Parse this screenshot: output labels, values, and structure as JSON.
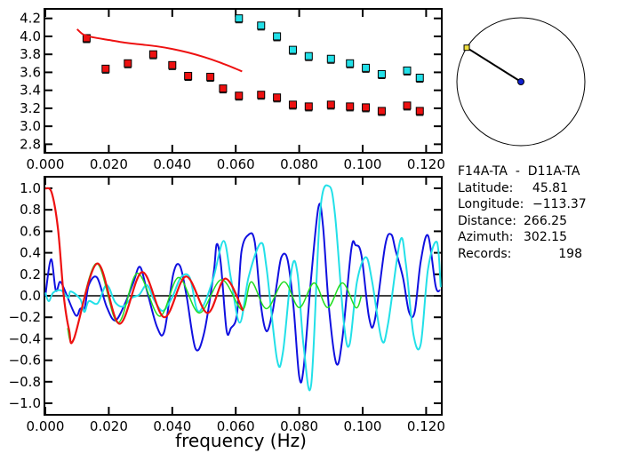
{
  "info": {
    "station_pair": "F14A-TA  -  D11A-TA",
    "rows": [
      {
        "label": "Latitude:",
        "value": "45.81"
      },
      {
        "label": "Longitude:",
        "value": "-113.37"
      },
      {
        "label": "Distance:",
        "value": "266.25"
      },
      {
        "label": "Azimuth:",
        "value": "302.15"
      },
      {
        "label": "Records:",
        "value": "198"
      }
    ]
  },
  "azimuth_dial": {
    "azimuth_deg": 302.15,
    "marker_color": "#f0e040",
    "center_color": "#1020d0"
  },
  "chart_data": [
    {
      "type": "scatter",
      "title": "",
      "xlabel": "",
      "ylabel": "",
      "xlim": [
        0.0,
        0.125
      ],
      "ylim": [
        2.7,
        4.3
      ],
      "xticks": [
        "0.000",
        "0.020",
        "0.040",
        "0.060",
        "0.080",
        "0.100",
        "0.120"
      ],
      "yticks": [
        "2.8",
        "3.0",
        "3.2",
        "3.4",
        "3.6",
        "3.8",
        "4.0",
        "4.2"
      ],
      "grid": false,
      "series": [
        {
          "kind": "points",
          "color": "#ee1111",
          "x": [
            0.013,
            0.019,
            0.026,
            0.034,
            0.04,
            0.045,
            0.052,
            0.056,
            0.061,
            0.068,
            0.073,
            0.078,
            0.083,
            0.09,
            0.096,
            0.101,
            0.106,
            0.114,
            0.118
          ],
          "y": [
            3.98,
            3.64,
            3.7,
            3.8,
            3.68,
            3.56,
            3.55,
            3.42,
            3.34,
            3.35,
            3.32,
            3.24,
            3.22,
            3.24,
            3.22,
            3.21,
            3.17,
            3.23,
            3.17
          ]
        },
        {
          "kind": "points",
          "color": "#22e0e8",
          "x": [
            0.061,
            0.068,
            0.073,
            0.078,
            0.083,
            0.09,
            0.096,
            0.101,
            0.106,
            0.114,
            0.118
          ],
          "y": [
            4.2,
            4.12,
            4.0,
            3.85,
            3.78,
            3.75,
            3.7,
            3.65,
            3.58,
            3.62,
            3.54
          ]
        },
        {
          "kind": "line",
          "color": "#ee1111",
          "x": [
            0.01,
            0.012,
            0.015,
            0.02,
            0.025,
            0.03,
            0.035,
            0.04,
            0.045,
            0.05,
            0.055,
            0.06,
            0.062
          ],
          "y": [
            4.08,
            4.02,
            3.99,
            3.96,
            3.93,
            3.91,
            3.89,
            3.86,
            3.82,
            3.77,
            3.71,
            3.64,
            3.61
          ]
        }
      ]
    },
    {
      "type": "line",
      "title": "",
      "xlabel": "frequency (Hz)",
      "ylabel": "",
      "xlim": [
        0.0,
        0.125
      ],
      "ylim": [
        -1.1,
        1.1
      ],
      "xticks": [
        "0.000",
        "0.020",
        "0.040",
        "0.060",
        "0.080",
        "0.100",
        "0.120"
      ],
      "yticks": [
        "1.0",
        "0.8",
        "0.6",
        "0.4",
        "0.2",
        "0.0",
        "-0.2",
        "-0.4",
        "-0.6",
        "-0.8",
        "-1.0"
      ],
      "grid": false,
      "zero_line": true,
      "series": [
        {
          "color": "#1010e0",
          "width": 2,
          "x": [
            0,
            0.0018,
            0.0033,
            0.0046,
            0.006,
            0.0095,
            0.011,
            0.0124,
            0.0137,
            0.0163,
            0.0193,
            0.022,
            0.025,
            0.0277,
            0.0298,
            0.032,
            0.0352,
            0.0375,
            0.0403,
            0.0424,
            0.0445,
            0.0473,
            0.05,
            0.053,
            0.054,
            0.0553,
            0.0571,
            0.0585,
            0.0604,
            0.0618,
            0.0641,
            0.066,
            0.0679,
            0.0697,
            0.0716,
            0.073,
            0.0744,
            0.0763,
            0.0782,
            0.08,
            0.0814,
            0.0838,
            0.0861,
            0.0875,
            0.0894,
            0.0917,
            0.0936,
            0.0964,
            0.0978,
            0.0996,
            0.102,
            0.1038,
            0.1071,
            0.109,
            0.1104,
            0.1127,
            0.1146,
            0.1164,
            0.1183,
            0.1206,
            0.123,
            0.1244
          ],
          "y": [
            0,
            0.34,
            0.05,
            0.13,
            0.06,
            -0.18,
            -0.12,
            -0.11,
            0.1,
            0.17,
            -0.1,
            -0.23,
            -0.08,
            0.12,
            0.27,
            0.05,
            -0.29,
            -0.33,
            0.2,
            0.28,
            0.0,
            -0.49,
            -0.35,
            0.2,
            0.48,
            0.3,
            -0.32,
            -0.3,
            -0.17,
            0.41,
            0.57,
            0.5,
            -0.08,
            -0.33,
            -0.15,
            0.12,
            0.36,
            0.34,
            -0.1,
            -0.75,
            -0.67,
            0.18,
            0.83,
            0.65,
            -0.12,
            -0.63,
            -0.4,
            0.43,
            0.47,
            0.38,
            -0.2,
            -0.23,
            0.47,
            0.57,
            0.42,
            0.17,
            -0.15,
            -0.15,
            0.32,
            0.56,
            0.09,
            0.05
          ]
        },
        {
          "color": "#22e0e8",
          "width": 2,
          "x": [
            0,
            0.0011,
            0.0025,
            0.005,
            0.0072,
            0.008,
            0.011,
            0.0123,
            0.0137,
            0.0165,
            0.0193,
            0.022,
            0.0245,
            0.0272,
            0.0296,
            0.032,
            0.0343,
            0.037,
            0.0399,
            0.0427,
            0.0455,
            0.0478,
            0.05,
            0.053,
            0.0562,
            0.0585,
            0.0613,
            0.0641,
            0.0679,
            0.0697,
            0.073,
            0.0749,
            0.0777,
            0.0795,
            0.0814,
            0.0838,
            0.0866,
            0.0894,
            0.0913,
            0.0941,
            0.0959,
            0.0982,
            0.101,
            0.103,
            0.106,
            0.108,
            0.1118,
            0.1136,
            0.116,
            0.1183,
            0.1206,
            0.1234,
            0.1246
          ],
          "y": [
            0.03,
            -0.05,
            0.03,
            0.05,
            -0.02,
            0.04,
            -0.03,
            -0.15,
            -0.05,
            -0.07,
            0.1,
            -0.06,
            -0.1,
            -0.02,
            0.01,
            0.1,
            -0.04,
            -0.14,
            -0.02,
            0.17,
            0.17,
            -0.13,
            -0.08,
            0.17,
            0.51,
            0.16,
            -0.25,
            0.18,
            0.49,
            0.26,
            -0.59,
            -0.52,
            0.26,
            0.2,
            -0.47,
            -0.82,
            0.78,
            1.02,
            0.75,
            -0.26,
            -0.45,
            0.13,
            0.36,
            0.13,
            -0.41,
            -0.26,
            0.51,
            0.3,
            -0.36,
            -0.45,
            0.25,
            0.5,
            0.08
          ]
        },
        {
          "color": "#22dd22",
          "width": 1.5,
          "x": [
            0.007,
            0.009,
            0.016,
            0.0228,
            0.029,
            0.036,
            0.042,
            0.0485,
            0.0555,
            0.062,
            0.0649,
            0.0697,
            0.0752,
            0.08,
            0.0847,
            0.089,
            0.0936,
            0.0978,
            0.0996
          ],
          "y": [
            -0.3,
            -0.4,
            0.3,
            -0.25,
            0.21,
            -0.19,
            0.17,
            -0.16,
            0.15,
            -0.13,
            0.13,
            -0.12,
            0.13,
            -0.11,
            0.12,
            -0.11,
            0.12,
            -0.11,
            0.0
          ]
        },
        {
          "color": "#ee1111",
          "width": 2.2,
          "x": [
            0,
            0.002,
            0.004,
            0.0058,
            0.0075,
            0.009,
            0.0163,
            0.0233,
            0.0305,
            0.0375,
            0.0443,
            0.0511,
            0.0567,
            0.0623
          ],
          "y": [
            1.0,
            0.96,
            0.62,
            0.0,
            -0.32,
            -0.4,
            0.3,
            -0.26,
            0.22,
            -0.2,
            0.18,
            -0.16,
            0.16,
            -0.14
          ]
        }
      ]
    }
  ]
}
